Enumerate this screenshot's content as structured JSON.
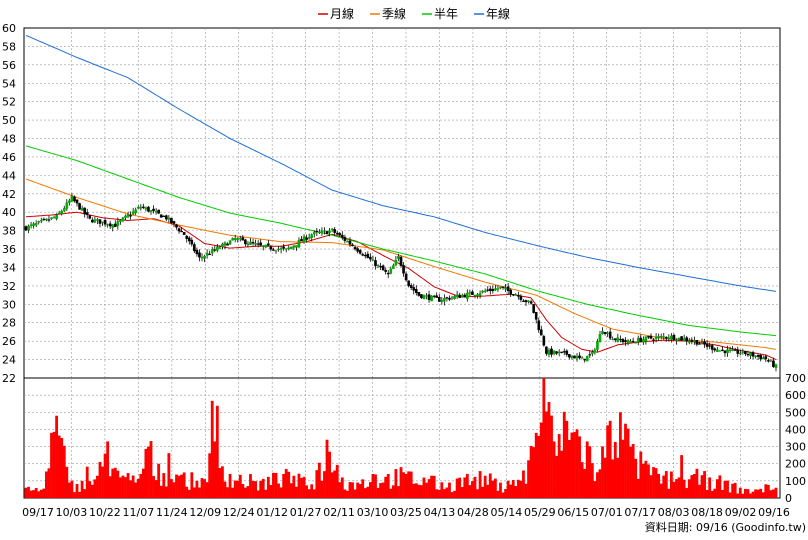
{
  "chart_data": {
    "type": "candlestick",
    "legend": [
      {
        "label": "月線",
        "color": "#cc0000"
      },
      {
        "label": "季線",
        "color": "#f07a00"
      },
      {
        "label": "半年",
        "color": "#00cc00"
      },
      {
        "label": "年線",
        "color": "#1f6fd6"
      }
    ],
    "price_axis": {
      "min": 22,
      "max": 60,
      "step": 2,
      "ticks": [
        "60",
        "58",
        "56",
        "54",
        "52",
        "50",
        "48",
        "46",
        "44",
        "42",
        "40",
        "38",
        "36",
        "34",
        "32",
        "30",
        "28",
        "26",
        "24",
        "22"
      ]
    },
    "volume_axis": {
      "min": 0,
      "max": 700,
      "step": 100,
      "ticks": [
        "700",
        "600",
        "500",
        "400",
        "300",
        "200",
        "100",
        "0"
      ]
    },
    "x_labels": [
      "09/17",
      "10/03",
      "10/22",
      "11/07",
      "11/24",
      "12/09",
      "12/24",
      "01/12",
      "01/27",
      "02/11",
      "03/10",
      "03/25",
      "04/13",
      "04/28",
      "05/14",
      "05/29",
      "06/15",
      "07/01",
      "07/17",
      "08/03",
      "08/18",
      "09/02",
      "09/16"
    ],
    "close_anchors": [
      [
        0,
        38.3
      ],
      [
        12,
        39.5
      ],
      [
        18,
        41.5
      ],
      [
        25,
        39.2
      ],
      [
        35,
        38.6
      ],
      [
        45,
        40.6
      ],
      [
        55,
        39.4
      ],
      [
        62,
        37.6
      ],
      [
        68,
        35.0
      ],
      [
        74,
        35.9
      ],
      [
        82,
        37.1
      ],
      [
        92,
        36.3
      ],
      [
        102,
        35.9
      ],
      [
        112,
        37.6
      ],
      [
        120,
        38.0
      ],
      [
        128,
        36.4
      ],
      [
        136,
        34.6
      ],
      [
        142,
        33.2
      ],
      [
        146,
        35.1
      ],
      [
        150,
        32.1
      ],
      [
        154,
        31.0
      ],
      [
        162,
        30.5
      ],
      [
        170,
        30.9
      ],
      [
        178,
        31.3
      ],
      [
        186,
        31.8
      ],
      [
        192,
        31.1
      ],
      [
        198,
        30.0
      ],
      [
        200,
        28.3
      ],
      [
        204,
        24.8
      ],
      [
        212,
        24.6
      ],
      [
        218,
        24.0
      ],
      [
        222,
        24.6
      ],
      [
        226,
        27.3
      ],
      [
        230,
        26.3
      ],
      [
        236,
        25.9
      ],
      [
        244,
        26.3
      ],
      [
        252,
        26.5
      ],
      [
        262,
        26.0
      ],
      [
        272,
        25.0
      ],
      [
        282,
        24.7
      ],
      [
        290,
        24.1
      ],
      [
        294,
        23.2
      ]
    ],
    "ma_lines": {
      "月線": [
        [
          0,
          39.5
        ],
        [
          10,
          39.7
        ],
        [
          20,
          40.0
        ],
        [
          30,
          39.4
        ],
        [
          40,
          39.1
        ],
        [
          50,
          39.3
        ],
        [
          60,
          38.5
        ],
        [
          70,
          36.6
        ],
        [
          80,
          36.1
        ],
        [
          90,
          36.3
        ],
        [
          100,
          36.3
        ],
        [
          110,
          36.8
        ],
        [
          120,
          37.6
        ],
        [
          130,
          36.8
        ],
        [
          140,
          35.3
        ],
        [
          150,
          33.9
        ],
        [
          160,
          31.9
        ],
        [
          170,
          30.8
        ],
        [
          180,
          30.9
        ],
        [
          190,
          31.1
        ],
        [
          198,
          30.7
        ],
        [
          204,
          28.3
        ],
        [
          210,
          26.4
        ],
        [
          218,
          25.1
        ],
        [
          224,
          24.8
        ],
        [
          232,
          25.6
        ],
        [
          240,
          25.9
        ],
        [
          250,
          26.1
        ],
        [
          260,
          26.0
        ],
        [
          270,
          25.6
        ],
        [
          280,
          25.0
        ],
        [
          290,
          24.5
        ],
        [
          294,
          24.0
        ]
      ],
      "季線": [
        [
          0,
          43.6
        ],
        [
          20,
          41.6
        ],
        [
          40,
          39.8
        ],
        [
          60,
          38.6
        ],
        [
          80,
          37.5
        ],
        [
          100,
          36.8
        ],
        [
          120,
          36.7
        ],
        [
          140,
          35.9
        ],
        [
          160,
          34.1
        ],
        [
          180,
          32.4
        ],
        [
          200,
          31.0
        ],
        [
          215,
          29.0
        ],
        [
          230,
          27.3
        ],
        [
          250,
          26.3
        ],
        [
          270,
          25.9
        ],
        [
          290,
          25.3
        ],
        [
          294,
          25.1
        ]
      ],
      "半年": [
        [
          0,
          47.2
        ],
        [
          20,
          45.6
        ],
        [
          40,
          43.6
        ],
        [
          60,
          41.6
        ],
        [
          80,
          39.9
        ],
        [
          100,
          38.8
        ],
        [
          120,
          37.5
        ],
        [
          140,
          36.0
        ],
        [
          160,
          34.7
        ],
        [
          180,
          33.3
        ],
        [
          200,
          31.5
        ],
        [
          220,
          30.0
        ],
        [
          240,
          28.8
        ],
        [
          260,
          27.7
        ],
        [
          280,
          27.0
        ],
        [
          294,
          26.6
        ]
      ],
      "年線": [
        [
          0,
          59.2
        ],
        [
          20,
          56.8
        ],
        [
          40,
          54.6
        ],
        [
          60,
          51.2
        ],
        [
          80,
          48.0
        ],
        [
          100,
          45.3
        ],
        [
          120,
          42.4
        ],
        [
          140,
          40.7
        ],
        [
          160,
          39.5
        ],
        [
          180,
          37.8
        ],
        [
          200,
          36.4
        ],
        [
          220,
          35.1
        ],
        [
          240,
          34.0
        ],
        [
          260,
          33.0
        ],
        [
          280,
          32.0
        ],
        [
          294,
          31.4
        ]
      ]
    },
    "volume_anchors": [
      [
        0,
        60
      ],
      [
        7,
        55
      ],
      [
        10,
        380
      ],
      [
        12,
        480
      ],
      [
        14,
        350
      ],
      [
        17,
        90
      ],
      [
        22,
        100
      ],
      [
        28,
        130
      ],
      [
        32,
        330
      ],
      [
        37,
        120
      ],
      [
        45,
        140
      ],
      [
        48,
        300
      ],
      [
        52,
        200
      ],
      [
        60,
        130
      ],
      [
        70,
        110
      ],
      [
        74,
        330
      ],
      [
        80,
        140
      ],
      [
        92,
        100
      ],
      [
        101,
        140
      ],
      [
        105,
        130
      ],
      [
        112,
        80
      ],
      [
        118,
        340
      ],
      [
        124,
        120
      ],
      [
        130,
        90
      ],
      [
        136,
        140
      ],
      [
        142,
        140
      ],
      [
        148,
        150
      ],
      [
        158,
        110
      ],
      [
        166,
        90
      ],
      [
        172,
        120
      ],
      [
        180,
        130
      ],
      [
        186,
        90
      ],
      [
        194,
        100
      ],
      [
        200,
        380
      ],
      [
        202,
        440
      ],
      [
        203,
        700
      ],
      [
        205,
        560
      ],
      [
        207,
        330
      ],
      [
        212,
        450
      ],
      [
        216,
        400
      ],
      [
        220,
        330
      ],
      [
        224,
        150
      ],
      [
        229,
        450
      ],
      [
        233,
        500
      ],
      [
        237,
        300
      ],
      [
        242,
        200
      ],
      [
        248,
        140
      ],
      [
        256,
        120
      ],
      [
        262,
        140
      ],
      [
        268,
        120
      ],
      [
        274,
        100
      ],
      [
        280,
        60
      ],
      [
        286,
        50
      ],
      [
        290,
        80
      ],
      [
        294,
        60
      ]
    ],
    "footer": "資料日期: 09/16 (Goodinfo.tw)"
  }
}
